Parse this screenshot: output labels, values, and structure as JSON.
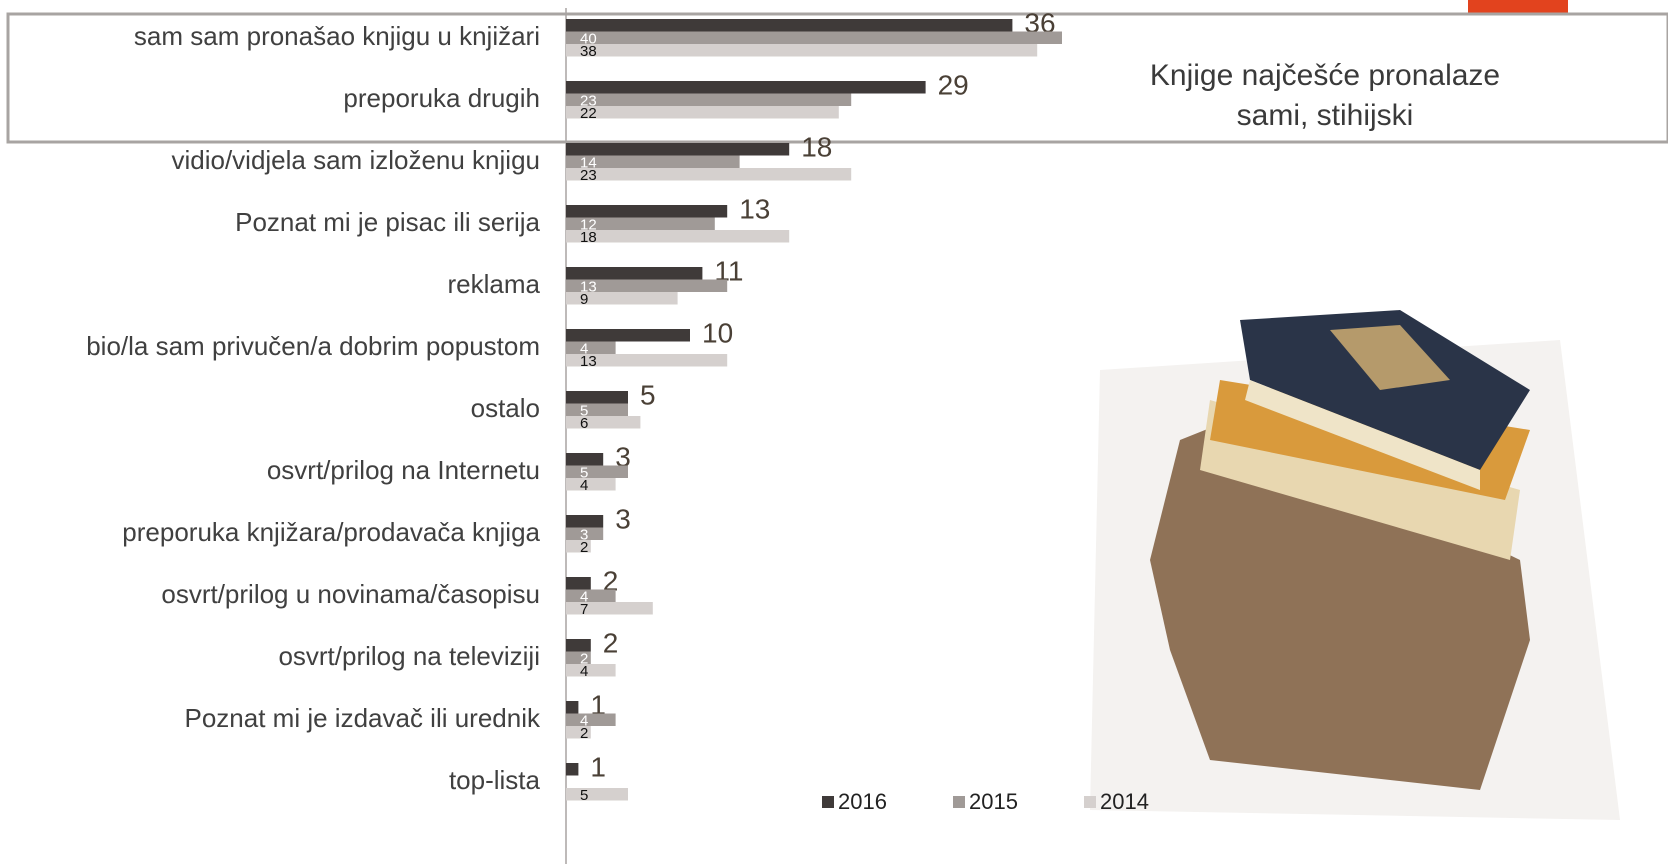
{
  "chart_data": {
    "type": "bar",
    "orientation": "horizontal",
    "title": "Knjige najčešće pronalaze sami, stihijski",
    "categories": [
      "sam sam pronašao knjigu u knjižari",
      "preporuka drugih",
      "vidio/vidjela sam izloženu knjigu",
      "Poznat mi je pisac ili serija",
      "reklama",
      "bio/la sam privučen/a dobrim popustom",
      "ostalo",
      "osvrt/prilog na Internetu",
      "preporuka knjižara/prodavača knjiga",
      "osvrt/prilog u novinama/časopisu",
      "osvrt/prilog na televiziji",
      "Poznat mi je izdavač ili urednik",
      "top-lista"
    ],
    "series": [
      {
        "name": "2016",
        "color": "#3f3a39",
        "values": [
          36,
          29,
          18,
          13,
          11,
          10,
          5,
          3,
          3,
          2,
          2,
          1,
          1
        ]
      },
      {
        "name": "2015",
        "color": "#a09a97",
        "values": [
          40,
          23,
          14,
          12,
          13,
          4,
          5,
          5,
          3,
          4,
          2,
          4,
          null
        ]
      },
      {
        "name": "2014",
        "color": "#d5d0ce",
        "values": [
          38,
          22,
          23,
          18,
          9,
          13,
          6,
          4,
          2,
          7,
          4,
          2,
          5
        ]
      }
    ],
    "legend": "bottom"
  }
}
